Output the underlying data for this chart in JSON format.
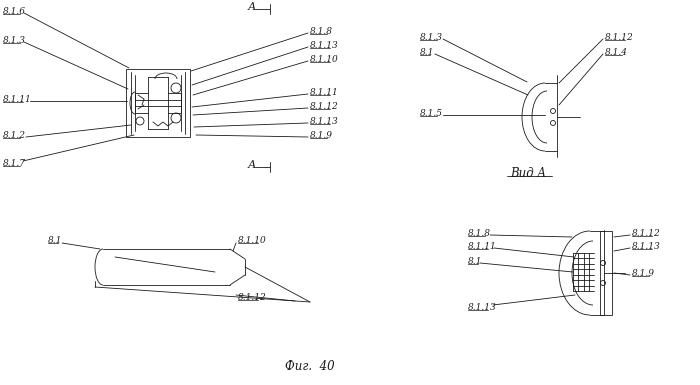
{
  "bg_color": "#ffffff",
  "line_color": "#1a1a1a",
  "fig_caption": "Фиг.  40",
  "view_caption": "Вид A",
  "font_size_labels": 6.5,
  "font_size_caption": 8.5
}
